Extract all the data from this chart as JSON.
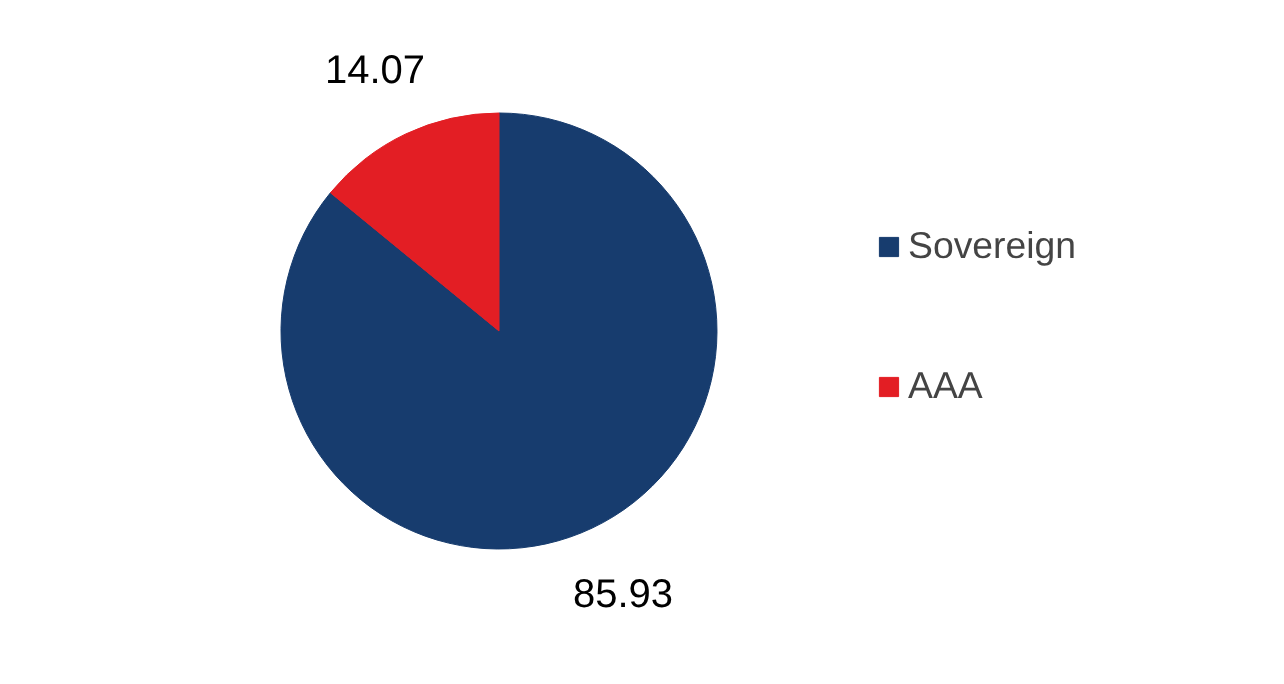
{
  "chart_data": {
    "type": "pie",
    "categories": [
      "Sovereign",
      "AAA"
    ],
    "values": [
      85.93,
      14.07
    ],
    "colors": [
      "#173c6e",
      "#e31e24"
    ],
    "data_labels": true,
    "legend": "right"
  }
}
